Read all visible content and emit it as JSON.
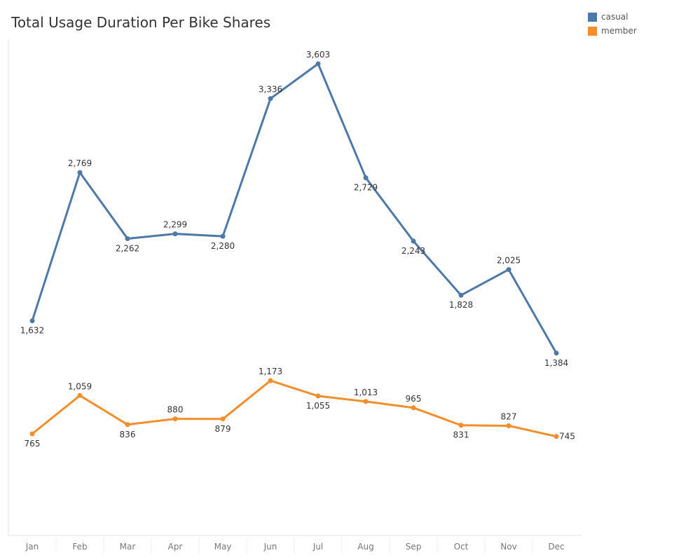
{
  "chart_data": {
    "type": "line",
    "title": "Total Usage Duration Per Bike Shares",
    "xlabel": "",
    "ylabel": "",
    "categories": [
      "Jan",
      "Feb",
      "Mar",
      "Apr",
      "May",
      "Jun",
      "Jul",
      "Aug",
      "Sep",
      "Oct",
      "Nov",
      "Dec"
    ],
    "series": [
      {
        "name": "casual",
        "color": "#4e79a7",
        "values": [
          1632,
          2769,
          2262,
          2299,
          2280,
          3336,
          3603,
          2729,
          2243,
          1828,
          2025,
          1384
        ],
        "labels": [
          "1,632",
          "2,769",
          "2,262",
          "2,299",
          "2,280",
          "3,336",
          "3,603",
          "2,729",
          "2,243",
          "1,828",
          "2,025",
          "1,384"
        ],
        "label_pos": [
          "below",
          "above",
          "below",
          "above",
          "below",
          "above",
          "above",
          "below",
          "below",
          "below",
          "above",
          "below"
        ]
      },
      {
        "name": "member",
        "color": "#f28e2b",
        "values": [
          765,
          1059,
          836,
          880,
          879,
          1173,
          1055,
          1013,
          965,
          831,
          827,
          745
        ],
        "labels": [
          "765",
          "1,059",
          "836",
          "880",
          "879",
          "1,173",
          "1,055",
          "1,013",
          "965",
          "831",
          "827",
          "745"
        ],
        "label_pos": [
          "below",
          "above",
          "below",
          "above",
          "below",
          "above",
          "below",
          "above",
          "above",
          "below",
          "above",
          "right"
        ]
      }
    ],
    "ylim": [
      0,
      3800
    ],
    "grid": false,
    "legend_position": "top-right"
  }
}
